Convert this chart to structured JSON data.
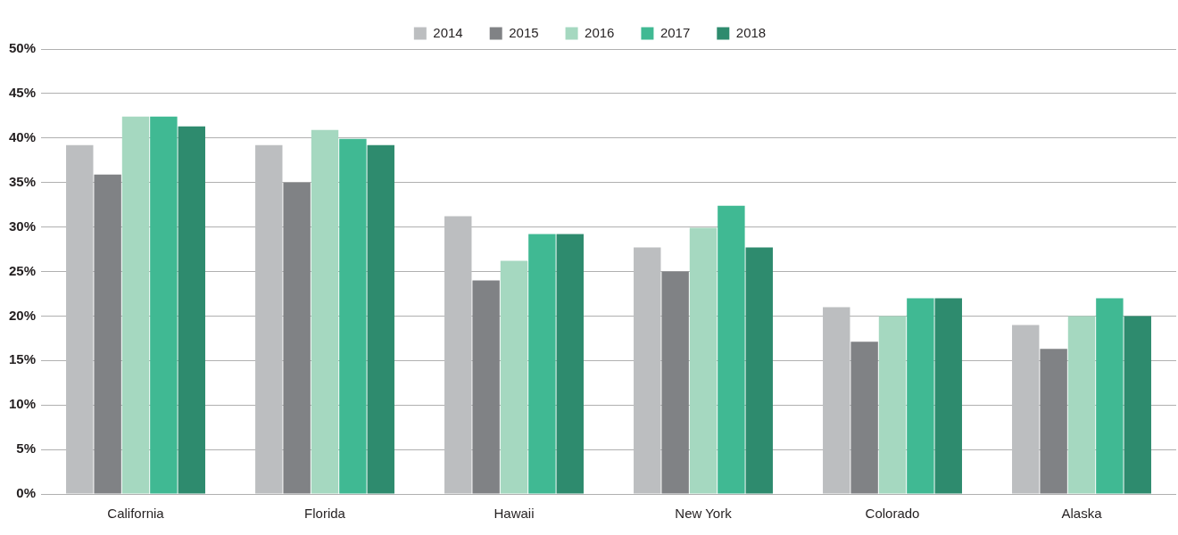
{
  "chart_data": {
    "type": "bar",
    "categories": [
      "California",
      "Florida",
      "Hawaii",
      "New York",
      "Colorado",
      "Alaska"
    ],
    "series": [
      {
        "name": "2014",
        "color": "#bcbec0",
        "values": [
          39.2,
          39.2,
          31.2,
          27.7,
          21.0,
          19.0
        ]
      },
      {
        "name": "2015",
        "color": "#808285",
        "values": [
          35.9,
          35.0,
          24.0,
          25.0,
          17.1,
          16.3
        ]
      },
      {
        "name": "2016",
        "color": "#a5d8c0",
        "values": [
          42.4,
          40.9,
          26.2,
          29.9,
          20.0,
          20.0
        ]
      },
      {
        "name": "2017",
        "color": "#40b993",
        "values": [
          42.4,
          39.9,
          29.2,
          32.4,
          22.0,
          22.0
        ]
      },
      {
        "name": "2018",
        "color": "#2e8b6e",
        "values": [
          41.3,
          39.2,
          29.2,
          27.7,
          22.0,
          20.0
        ]
      }
    ],
    "ylim": [
      0,
      50
    ],
    "yticks": [
      {
        "value": 0,
        "label": "0%"
      },
      {
        "value": 5,
        "label": "5%"
      },
      {
        "value": 10,
        "label": "10%"
      },
      {
        "value": 15,
        "label": "15%"
      },
      {
        "value": 20,
        "label": "20%"
      },
      {
        "value": 25,
        "label": "25%"
      },
      {
        "value": 30,
        "label": "30%"
      },
      {
        "value": 35,
        "label": "35%"
      },
      {
        "value": 40,
        "label": "40%"
      },
      {
        "value": 45,
        "label": "45%"
      },
      {
        "value": 50,
        "label": "50%"
      }
    ],
    "grid": "y",
    "legend": "top"
  }
}
